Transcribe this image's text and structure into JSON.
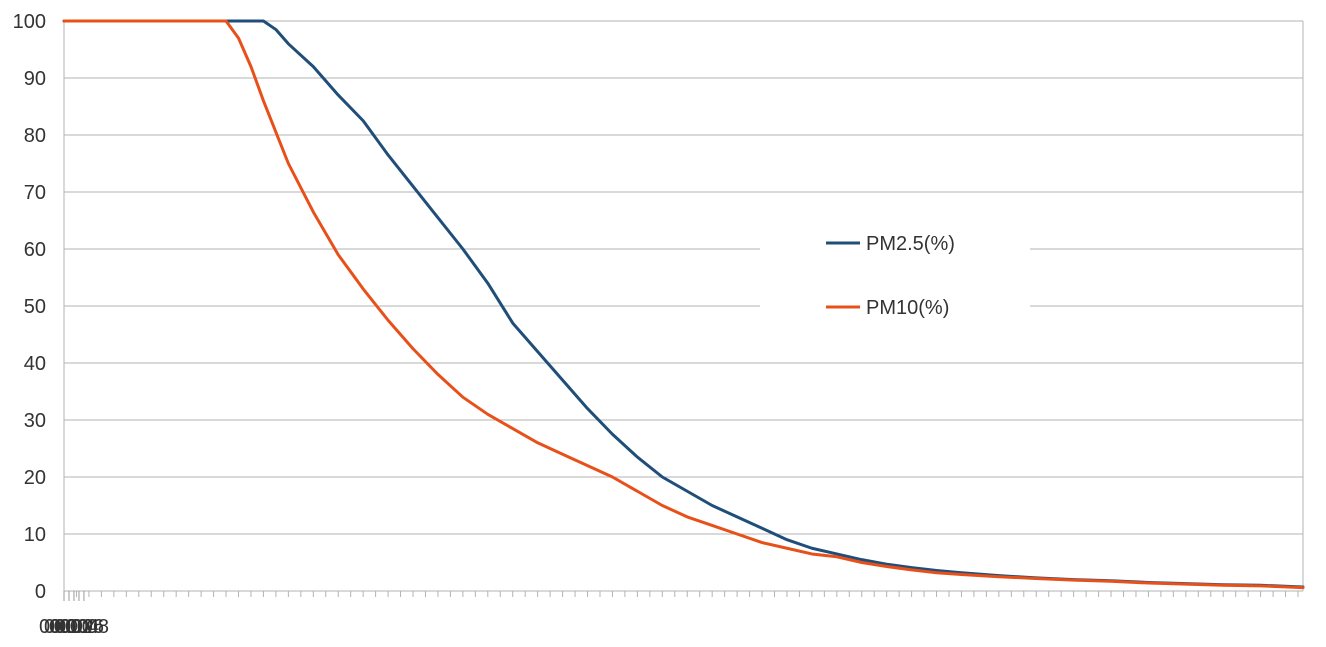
{
  "chart_data": {
    "type": "line",
    "title": "",
    "xlabel": "",
    "ylabel": "",
    "x_unit": "mm:ss",
    "xlim": [
      "00:00",
      "08:17"
    ],
    "ylim": [
      0,
      100
    ],
    "y_ticks": [
      0,
      10,
      20,
      30,
      40,
      50,
      60,
      70,
      80,
      90,
      100
    ],
    "x_ticks": [
      "00:00",
      "00:02",
      "00:04",
      "00:06",
      "00:08"
    ],
    "grid": "horizontal",
    "legend_position": "right",
    "x": [
      "00:00",
      "01:05",
      "01:10",
      "01:15",
      "01:20",
      "01:25",
      "01:30",
      "01:40",
      "01:50",
      "02:00",
      "02:10",
      "02:20",
      "02:30",
      "02:40",
      "02:50",
      "03:00",
      "03:10",
      "03:20",
      "03:30",
      "03:40",
      "03:50",
      "04:00",
      "04:10",
      "04:20",
      "04:30",
      "04:40",
      "04:50",
      "05:00",
      "05:10",
      "05:20",
      "05:30",
      "05:40",
      "05:50",
      "06:00",
      "06:15",
      "06:30",
      "06:45",
      "07:00",
      "07:15",
      "07:30",
      "07:45",
      "08:00",
      "08:17"
    ],
    "series": [
      {
        "name": "PM2.5(%)",
        "color": "#1f4e79",
        "values": [
          100,
          100,
          100,
          100,
          100,
          98.5,
          96,
          92,
          87,
          82.5,
          76.5,
          71,
          65.5,
          60,
          54,
          47,
          42,
          37,
          32,
          27.5,
          23.5,
          20,
          17.5,
          15,
          13,
          11,
          9,
          7.5,
          6.5,
          5.5,
          4.7,
          4.1,
          3.6,
          3.2,
          2.7,
          2.3,
          2.0,
          1.8,
          1.5,
          1.3,
          1.1,
          1.0,
          0.7
        ]
      },
      {
        "name": "PM10(%)",
        "color": "#e8501a",
        "values": [
          100,
          100,
          97,
          92,
          86,
          80.5,
          75,
          66.5,
          59,
          53,
          47.5,
          42.5,
          38,
          34,
          31,
          28.5,
          26,
          24,
          22,
          20,
          17.5,
          15,
          13,
          11.5,
          10,
          8.5,
          7.5,
          6.5,
          6,
          5,
          4.3,
          3.7,
          3.2,
          2.9,
          2.5,
          2.2,
          1.9,
          1.7,
          1.4,
          1.2,
          1.0,
          0.9,
          0.6
        ]
      }
    ]
  }
}
